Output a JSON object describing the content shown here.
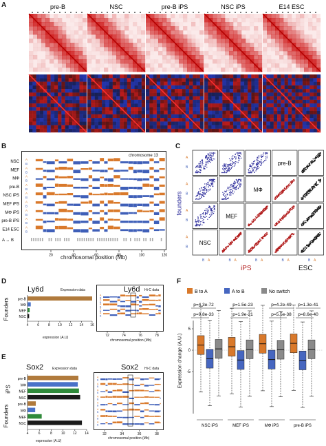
{
  "panel_a": {
    "letter": "A",
    "titles": [
      "pre-B",
      "NSC",
      "pre-B iPS",
      "NSC iPS",
      "E14 ESC"
    ]
  },
  "panel_b": {
    "letter": "B",
    "chrom_label": "chromosome 13",
    "rows": [
      {
        "name": "NSC",
        "ab": true
      },
      {
        "name": "MEF",
        "ab": true
      },
      {
        "name": "MΦ",
        "ab": true
      },
      {
        "name": "pre-B",
        "ab": true
      },
      {
        "name": "NSC iPS",
        "ab": true
      },
      {
        "name": "MEF iPS",
        "ab": true
      },
      {
        "name": "MΦ iPS",
        "ab": true
      },
      {
        "name": "pre-B iPS",
        "ab": true
      },
      {
        "name": "E14 ESC",
        "ab": true
      }
    ],
    "ab_a": "A",
    "ab_b": "B",
    "arrow_label": "A ↔ B",
    "ticks": [
      "20",
      "40",
      "60",
      "80",
      "100",
      "120"
    ],
    "xlabel": "chromosomal position (Mb)",
    "colors": {
      "a": "#d9792b",
      "b": "#3f5fb8"
    }
  },
  "panel_c": {
    "letter": "C",
    "ylabel": "founders",
    "xlabel_ips": "iPS",
    "xlabel_esc": "ESC",
    "diag_labels": [
      "pre-B",
      "MΦ",
      "MEF",
      "NSC"
    ],
    "row_ab": [
      "A",
      "B"
    ],
    "colors": {
      "blue": "#2a2a9a",
      "red": "#b01818",
      "black": "#111111"
    }
  },
  "panel_d": {
    "letter": "D",
    "gene": "Ly6d",
    "expr_title": "Expression data",
    "hic_gene": "Ly6d",
    "hic_title": "Hi-C data",
    "side_label": "Founders",
    "bars": [
      {
        "name": "pre-B",
        "value": 16,
        "color": "#b07a3c"
      },
      {
        "name": "MΦ",
        "value": 4.6,
        "color": "#4a72c8"
      },
      {
        "name": "MEF",
        "value": 4.4,
        "color": "#2f8a3a"
      },
      {
        "name": "NSC",
        "value": 4.3,
        "color": "#1a1a1a"
      }
    ],
    "xticks": [
      "4",
      "6",
      "8",
      "10",
      "12",
      "14",
      "16"
    ],
    "xlabel": "expression (A.U)",
    "hic_ticks": [
      "72",
      "74",
      "76",
      "78"
    ],
    "hic_xlabel": "chromosomal position (Mb)"
  },
  "panel_e": {
    "letter": "E",
    "gene": "Sox2",
    "expr_title": "Expression data",
    "hic_gene": "Sox2",
    "hic_title": "Hi-C data",
    "side_ips": "iPS",
    "side_founders": "Founders",
    "bars": [
      {
        "name": "pre-B",
        "value": 12.6,
        "color": "#b07a3c"
      },
      {
        "name": "MΦ",
        "value": 12.5,
        "color": "#4a72c8"
      },
      {
        "name": "MEF",
        "value": 12.7,
        "color": "#2f8a3a"
      },
      {
        "name": "NSC",
        "value": 12.9,
        "color": "#1a1a1a"
      },
      {
        "name": "pre-B",
        "value": 5.4,
        "color": "#b07a3c"
      },
      {
        "name": "MΦ",
        "value": 5.3,
        "color": "#4a72c8"
      },
      {
        "name": "MEF",
        "value": 6.4,
        "color": "#2f8a3a"
      },
      {
        "name": "NSC",
        "value": 13.2,
        "color": "#1a1a1a"
      }
    ],
    "xticks": [
      "4",
      "6",
      "8",
      "10",
      "12",
      "14"
    ],
    "xlabel": "expression (A.U)",
    "hic_ticks": [
      "32",
      "34",
      "36",
      "38"
    ],
    "hic_xlabel": "chromosomal position (Mb)"
  },
  "panel_f": {
    "letter": "F",
    "ylabel": "Expression change (A.U.)",
    "legend": [
      {
        "label": "B to A",
        "color": "#d9792b"
      },
      {
        "label": "A to B",
        "color": "#4666c0"
      },
      {
        "label": "No switch",
        "color": "#8a8a8a"
      }
    ],
    "pvals_top": [
      "p=4.3e-72",
      "p=1.5e-23",
      "p=4.2e-49",
      "p=1.3e-41"
    ],
    "pvals_bottom": [
      "p=9.8e-33",
      "p=1.9e-21",
      "p=5.5e-38",
      "p=8.6e-40"
    ],
    "groups": [
      "NSC iPS",
      "MEF iPS",
      "MΦ iPS",
      "pre-B iPS"
    ],
    "yticks": [
      "5",
      "0",
      "-5"
    ]
  },
  "chart_data": {
    "type": "bar",
    "title": "Ly6d",
    "xlabel": "expression (A.U)",
    "categories": [
      "pre-B",
      "MΦ",
      "MEF",
      "NSC"
    ],
    "values": [
      16,
      4.6,
      4.4,
      4.3
    ],
    "xlim": [
      4,
      16
    ]
  }
}
